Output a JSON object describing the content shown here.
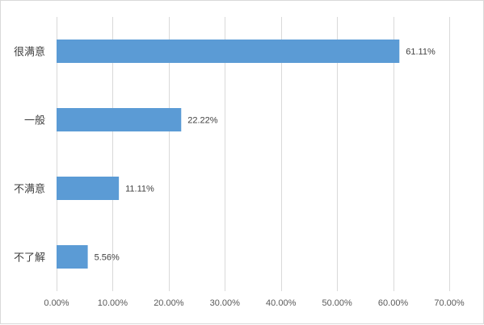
{
  "chart_data": {
    "type": "bar",
    "orientation": "horizontal",
    "categories": [
      "很满意",
      "一般",
      "不满意",
      "不了解"
    ],
    "values": [
      61.11,
      22.22,
      11.11,
      5.56
    ],
    "data_labels": [
      "61.11%",
      "22.22%",
      "11.11%",
      "5.56%"
    ],
    "xlim": [
      0,
      70
    ],
    "x_ticks": [
      0,
      10,
      20,
      30,
      40,
      50,
      60,
      70
    ],
    "x_tick_labels": [
      "0.00%",
      "10.00%",
      "20.00%",
      "30.00%",
      "40.00%",
      "50.00%",
      "60.00%",
      "70.00%"
    ],
    "grid": "vertical",
    "legend": "none",
    "bar_color": "#5b9bd5",
    "grid_color": "#d9d9d9",
    "title": "",
    "xlabel": "",
    "ylabel": ""
  }
}
